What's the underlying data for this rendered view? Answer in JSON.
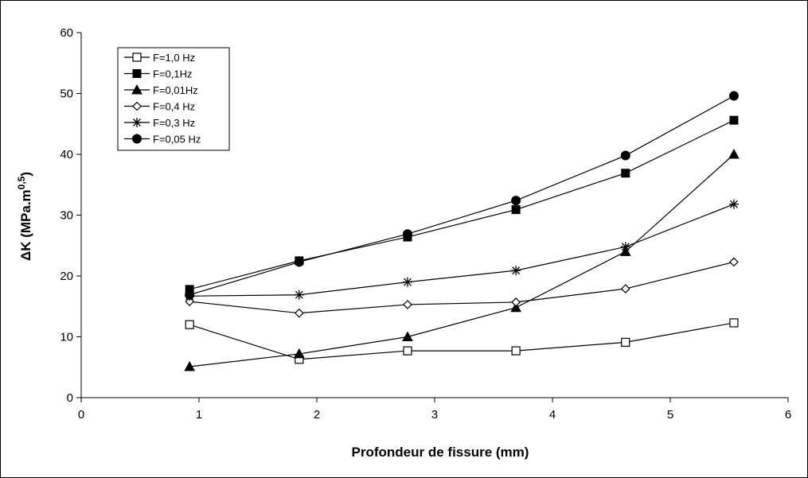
{
  "chart_data": {
    "type": "line",
    "xlabel": "Profondeur de fissure (mm)",
    "ylabel_main": "ΔK (MPa.m",
    "ylabel_sup": "0,5",
    "ylabel_close": ")",
    "xlim": [
      0,
      6
    ],
    "ylim": [
      0,
      60
    ],
    "xticks": [
      0,
      1,
      2,
      3,
      4,
      5,
      6
    ],
    "yticks": [
      0,
      10,
      20,
      30,
      40,
      50,
      60
    ],
    "x": [
      0.92,
      1.85,
      2.77,
      3.69,
      4.62,
      5.54
    ],
    "legend_position": "top-left",
    "grid": false,
    "series": [
      {
        "name": "F=1,0 Hz",
        "marker": "open-square",
        "values": [
          12.0,
          6.3,
          7.7,
          7.7,
          9.1,
          12.3
        ]
      },
      {
        "name": "F=0,1Hz",
        "marker": "filled-square",
        "values": [
          17.8,
          22.5,
          26.4,
          30.9,
          36.9,
          45.6
        ]
      },
      {
        "name": "F=0,01Hz",
        "marker": "filled-triangle",
        "values": [
          5.1,
          7.2,
          10.0,
          14.8,
          24.0,
          40.0
        ]
      },
      {
        "name": "F=0,4 Hz",
        "marker": "open-diamond",
        "values": [
          15.8,
          13.9,
          15.3,
          15.7,
          17.9,
          22.3
        ]
      },
      {
        "name": "F=0,3 Hz",
        "marker": "asterisk",
        "values": [
          16.7,
          16.9,
          19.0,
          20.9,
          24.8,
          31.8
        ]
      },
      {
        "name": "F=0,05 Hz",
        "marker": "filled-circle",
        "values": [
          16.9,
          22.3,
          26.9,
          32.4,
          39.8,
          49.6
        ]
      }
    ]
  }
}
